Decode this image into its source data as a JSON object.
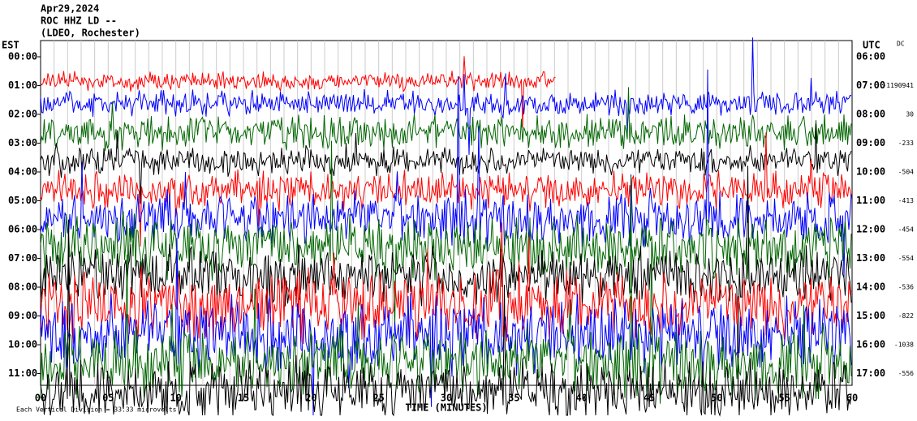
{
  "header": {
    "lines": [
      "Apr29,2024",
      "ROC HHZ LD --",
      "(LDEO, Rochester)"
    ]
  },
  "left_axis": {
    "title": "EST",
    "labels": [
      "00:00",
      "01:00",
      "02:00",
      "03:00",
      "04:00",
      "05:00",
      "06:00",
      "07:00",
      "08:00",
      "09:00",
      "10:00",
      "11:00"
    ]
  },
  "right_axis": {
    "title": "UTC",
    "labels": [
      "06:00",
      "07:00",
      "08:00",
      "09:00",
      "10:00",
      "11:00",
      "12:00",
      "13:00",
      "14:00",
      "15:00",
      "16:00",
      "17:00"
    ]
  },
  "dc": {
    "title": "DC",
    "values": [
      "",
      "-1190941",
      "30",
      "-233",
      "-504",
      "-413",
      "-454",
      "-554",
      "-536",
      "-822",
      "-1038",
      "-556"
    ]
  },
  "x_axis": {
    "labels": [
      "00",
      "05",
      "10",
      "15",
      "20",
      "25",
      "30",
      "35",
      "40",
      "45",
      "50",
      "55",
      "60"
    ],
    "title": "TIME (MINUTES)"
  },
  "footer": "Each Vertical Division = 33.33 microvolts"
}
